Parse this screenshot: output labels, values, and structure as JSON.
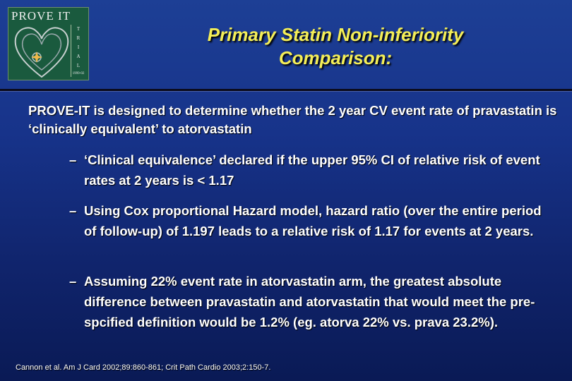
{
  "logo": {
    "title": "PROVE IT",
    "letters": [
      "T",
      "R",
      "I",
      "A",
      "L"
    ],
    "year": "1999-02"
  },
  "slide": {
    "title_line1": "Primary Statin Non-inferiority",
    "title_line2": "Comparison:",
    "main_bullet": "PROVE-IT is designed to determine whether the 2 year CV event rate of pravastatin is ‘clinically equivalent’ to atorvastatin",
    "sub_bullets": [
      "‘Clinical equivalence’ declared if the upper 95% CI of relative risk of event rates at 2 years is < 1.17",
      "Using Cox proportional Hazard model, hazard ratio (over the entire period of follow-up) of 1.197 leads to a relative risk of 1.17 for events at 2 years.",
      "Assuming 22% event rate in atorvastatin arm, the greatest absolute difference between pravastatin and atorvastatin that would meet the pre-spcified definition would be 1.2% (eg. atorva 22% vs. prava 23.2%)."
    ],
    "dash": "–",
    "citation": "Cannon et al. Am J Card 2002;89:860-861; Crit Path Cardio 2003;2:150-7."
  }
}
